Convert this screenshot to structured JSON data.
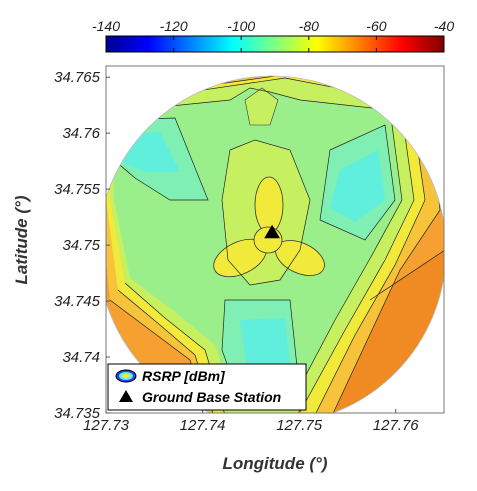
{
  "chart_data": {
    "type": "heatmap",
    "title": "",
    "xlabel": "Longitude (°)",
    "ylabel": "Latitude (°)",
    "xlim": [
      127.73,
      127.765
    ],
    "ylim": [
      34.735,
      34.766
    ],
    "x_ticks": [
      127.73,
      127.74,
      127.75,
      127.76
    ],
    "y_ticks": [
      34.735,
      34.74,
      34.745,
      34.75,
      34.755,
      34.76,
      34.765
    ],
    "x_tick_labels": [
      "127.73",
      "127.74",
      "127.75",
      "127.76"
    ],
    "y_tick_labels": [
      "34.735",
      "34.74",
      "34.745",
      "34.75",
      "34.755",
      "34.76",
      "34.765"
    ],
    "colorbar": {
      "min": -140,
      "max": -40,
      "colormap": "jet",
      "position": "top",
      "ticks": [
        -140,
        -120,
        -100,
        -80,
        -60,
        -40
      ],
      "tick_labels": [
        "-140",
        "-120",
        "-100",
        "-80",
        "-60",
        "-40"
      ]
    },
    "base_station": {
      "lon": 127.7472,
      "lat": 34.7511
    },
    "grid": false,
    "legend_position": "bottom-left",
    "legend": [
      {
        "label": "RSRP [dBm]",
        "marker": "contour-ellipse"
      },
      {
        "label": "Ground Base Station",
        "marker": "black-triangle"
      }
    ],
    "colors": {
      "orange_outer": "#f5a030",
      "yellow_orange": "#f6c33a",
      "yellow": "#f2ea3b",
      "yellow_green": "#c6f060",
      "green": "#9bef8a",
      "cyan_green": "#7fefb4",
      "cyan": "#5fefdc",
      "orange_dark": "#f08a22"
    }
  }
}
